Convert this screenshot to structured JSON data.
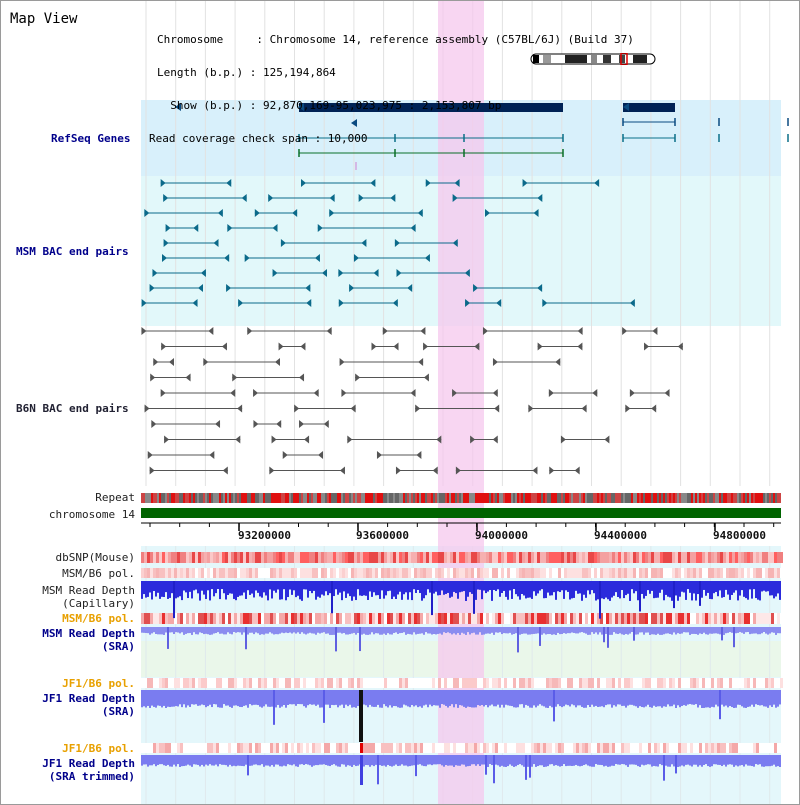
{
  "panel": {
    "title": "Map View"
  },
  "info": {
    "chromosome_line": "Chromosome     : Chromosome 14, reference assembly (C57BL/6J) (Build 37)",
    "length_line": "Length (b.p.) : 125,194,864",
    "show_line": "  Show (b.p.) : 92,870,169-95,023,975 : 2,153,807 bp",
    "coverage_line": "Read coverage check span : 10,000"
  },
  "tracks": {
    "refseq": "RefSeq Genes",
    "msm_bac": "MSM BAC end pairs",
    "b6n_bac": "B6N BAC end pairs",
    "repeat": "Repeat",
    "chromosome": "chromosome 14",
    "dbsnp": "dbSNP(Mouse)",
    "msm_b6_pol_1": "MSM/B6 pol.",
    "msm_read_depth_cap_1": "MSM Read Depth",
    "msm_read_depth_cap_2": "(Capillary)",
    "msm_b6_pol_2": "MSM/B6 pol.",
    "msm_read_depth_sra_1": "MSM Read Depth",
    "msm_read_depth_sra_2": "(SRA)",
    "jf1_b6_pol_1": "JF1/B6 pol.",
    "jf1_read_depth_sra_1": "JF1 Read Depth",
    "jf1_read_depth_sra_2": "(SRA)",
    "jf1_b6_pol_2": "JF1/B6 pol.",
    "jf1_read_depth_trim_1": "JF1 Read Depth",
    "jf1_read_depth_trim_2": "(SRA trimmed)"
  },
  "axis": {
    "ticks": [
      "93200000",
      "93600000",
      "94000000",
      "94400000",
      "94800000"
    ]
  },
  "colors": {
    "highlight": "#f6c8ee",
    "refseq_bg": "#d8f0fb",
    "msm_bg": "#e2f8fa",
    "chromosome_bar": "#006400",
    "gene_dark": "#002255",
    "bac_teal": "#0b6a8a",
    "bac_gray": "#555555"
  }
}
